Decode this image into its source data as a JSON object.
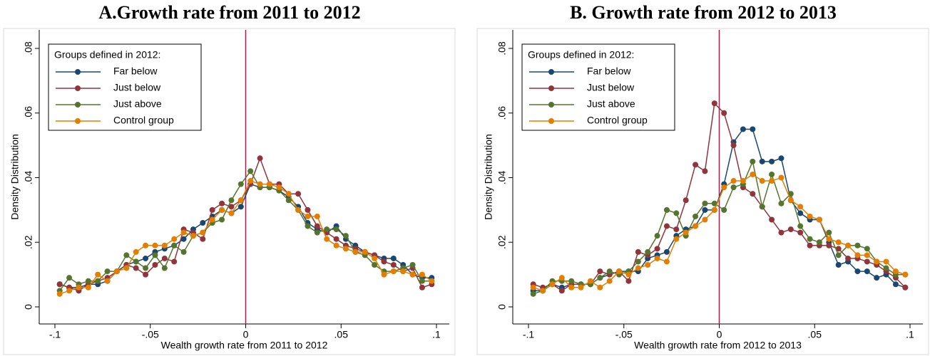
{
  "chart_data": [
    {
      "type": "line",
      "title": "A.Growth rate from 2011 to 2012",
      "xlabel": "Wealth growth rate from 2011 to 2012",
      "ylabel": "Density Distribution",
      "legend_title": "Groups defined in 2012:",
      "legend": "top-left",
      "vline": 0,
      "vline_color": "#a0244a",
      "x": [
        -0.0975,
        -0.0925,
        -0.0875,
        -0.0825,
        -0.0775,
        -0.0725,
        -0.0675,
        -0.0625,
        -0.0575,
        -0.0525,
        -0.0475,
        -0.0425,
        -0.0375,
        -0.0325,
        -0.0275,
        -0.0225,
        -0.0175,
        -0.0125,
        -0.0075,
        -0.0025,
        0.0025,
        0.0075,
        0.0125,
        0.0175,
        0.0225,
        0.0275,
        0.0325,
        0.0375,
        0.0425,
        0.0475,
        0.0525,
        0.0575,
        0.0625,
        0.0675,
        0.0725,
        0.0775,
        0.0825,
        0.0875,
        0.0925,
        0.0975
      ],
      "xlim": [
        -0.1,
        0.1
      ],
      "xticks": [
        {
          "value": -0.1,
          "label": "-.1"
        },
        {
          "value": -0.05,
          "label": "-.05"
        },
        {
          "value": 0,
          "label": "0"
        },
        {
          "value": 0.05,
          "label": ".05"
        },
        {
          "value": 0.1,
          "label": ".1"
        }
      ],
      "ylim": [
        0,
        0.08
      ],
      "yticks": [
        {
          "value": 0,
          "label": "0"
        },
        {
          "value": 0.02,
          "label": ".02"
        },
        {
          "value": 0.04,
          "label": ".04"
        },
        {
          "value": 0.06,
          "label": ".06"
        },
        {
          "value": 0.08,
          "label": ".08"
        }
      ],
      "series": [
        {
          "name": "Far below",
          "color": "#1a476f",
          "values": [
            0.007,
            0.006,
            0.006,
            0.007,
            0.007,
            0.008,
            0.011,
            0.013,
            0.014,
            0.015,
            0.017,
            0.018,
            0.019,
            0.021,
            0.024,
            0.026,
            0.028,
            0.03,
            0.029,
            0.031,
            0.038,
            0.037,
            0.037,
            0.036,
            0.034,
            0.031,
            0.026,
            0.024,
            0.023,
            0.025,
            0.021,
            0.019,
            0.017,
            0.016,
            0.015,
            0.015,
            0.013,
            0.01,
            0.009,
            0.009
          ]
        },
        {
          "name": "Just below",
          "color": "#90353b",
          "values": [
            0.007,
            0.006,
            0.005,
            0.007,
            0.008,
            0.009,
            0.011,
            0.013,
            0.012,
            0.01,
            0.013,
            0.015,
            0.014,
            0.024,
            0.023,
            0.021,
            0.03,
            0.032,
            0.031,
            0.033,
            0.038,
            0.046,
            0.038,
            0.038,
            0.035,
            0.035,
            0.03,
            0.025,
            0.023,
            0.021,
            0.019,
            0.018,
            0.017,
            0.016,
            0.014,
            0.013,
            0.011,
            0.012,
            0.006,
            0.007
          ]
        },
        {
          "name": "Just above",
          "color": "#55752f",
          "values": [
            0.005,
            0.009,
            0.007,
            0.008,
            0.008,
            0.011,
            0.011,
            0.016,
            0.014,
            0.012,
            0.016,
            0.012,
            0.019,
            0.017,
            0.022,
            0.023,
            0.026,
            0.027,
            0.033,
            0.038,
            0.042,
            0.037,
            0.037,
            0.036,
            0.033,
            0.03,
            0.025,
            0.023,
            0.024,
            0.024,
            0.022,
            0.017,
            0.016,
            0.013,
            0.011,
            0.011,
            0.012,
            0.013,
            0.008,
            0.008
          ]
        },
        {
          "name": "Control group",
          "color": "#e37e00",
          "values": [
            0.004,
            0.005,
            0.006,
            0.006,
            0.01,
            0.008,
            0.011,
            0.012,
            0.017,
            0.019,
            0.019,
            0.019,
            0.021,
            0.023,
            0.022,
            0.023,
            0.027,
            0.03,
            0.029,
            0.033,
            0.039,
            0.038,
            0.038,
            0.037,
            0.035,
            0.03,
            0.028,
            0.028,
            0.021,
            0.019,
            0.018,
            0.017,
            0.017,
            0.015,
            0.01,
            0.011,
            0.011,
            0.01,
            0.01,
            0.008
          ]
        }
      ]
    },
    {
      "type": "line",
      "title": "B. Growth rate from 2012 to 2013",
      "xlabel": "Wealth growth rate from 2012 to 2013",
      "ylabel": "Density Distribution",
      "legend_title": "Groups defined in 2012:",
      "legend": "top-left",
      "vline": 0,
      "vline_color": "#a0244a",
      "x": [
        -0.0975,
        -0.0925,
        -0.0875,
        -0.0825,
        -0.0775,
        -0.0725,
        -0.0675,
        -0.0625,
        -0.0575,
        -0.0525,
        -0.0475,
        -0.0425,
        -0.0375,
        -0.0325,
        -0.0275,
        -0.0225,
        -0.0175,
        -0.0125,
        -0.0075,
        -0.0025,
        0.0025,
        0.0075,
        0.0125,
        0.0175,
        0.0225,
        0.0275,
        0.0325,
        0.0375,
        0.0425,
        0.0475,
        0.0525,
        0.0575,
        0.0625,
        0.0675,
        0.0725,
        0.0775,
        0.0825,
        0.0875,
        0.0925,
        0.0975
      ],
      "xlim": [
        -0.1,
        0.1
      ],
      "xticks": [
        {
          "value": -0.1,
          "label": "-.1"
        },
        {
          "value": -0.05,
          "label": "-.05"
        },
        {
          "value": 0,
          "label": "0"
        },
        {
          "value": 0.05,
          "label": ".05"
        },
        {
          "value": 0.1,
          "label": ".1"
        }
      ],
      "ylim": [
        0,
        0.08
      ],
      "yticks": [
        {
          "value": 0,
          "label": "0"
        },
        {
          "value": 0.02,
          "label": ".02"
        },
        {
          "value": 0.04,
          "label": ".04"
        },
        {
          "value": 0.06,
          "label": ".06"
        },
        {
          "value": 0.08,
          "label": ".08"
        }
      ],
      "series": [
        {
          "name": "Far below",
          "color": "#1a476f",
          "values": [
            0.005,
            0.005,
            0.007,
            0.006,
            0.007,
            0.007,
            0.007,
            0.009,
            0.01,
            0.011,
            0.011,
            0.011,
            0.015,
            0.016,
            0.017,
            0.022,
            0.024,
            0.025,
            0.03,
            0.03,
            0.038,
            0.051,
            0.055,
            0.055,
            0.045,
            0.045,
            0.046,
            0.033,
            0.029,
            0.027,
            0.027,
            0.02,
            0.013,
            0.014,
            0.011,
            0.011,
            0.009,
            0.01,
            0.007,
            0.006
          ]
        },
        {
          "name": "Just below",
          "color": "#90353b",
          "values": [
            0.007,
            0.006,
            0.007,
            0.005,
            0.007,
            0.007,
            0.007,
            0.011,
            0.01,
            0.011,
            0.008,
            0.017,
            0.016,
            0.018,
            0.025,
            0.024,
            0.033,
            0.044,
            0.042,
            0.063,
            0.06,
            0.05,
            0.037,
            0.035,
            0.031,
            0.027,
            0.023,
            0.024,
            0.023,
            0.019,
            0.019,
            0.019,
            0.018,
            0.015,
            0.015,
            0.014,
            0.013,
            0.011,
            0.009,
            0.006
          ]
        },
        {
          "name": "Just above",
          "color": "#55752f",
          "values": [
            0.004,
            0.005,
            0.008,
            0.008,
            0.008,
            0.007,
            0.007,
            0.009,
            0.011,
            0.01,
            0.011,
            0.014,
            0.017,
            0.022,
            0.03,
            0.029,
            0.022,
            0.028,
            0.032,
            0.032,
            0.03,
            0.037,
            0.038,
            0.045,
            0.031,
            0.041,
            0.032,
            0.035,
            0.025,
            0.021,
            0.02,
            0.023,
            0.016,
            0.019,
            0.019,
            0.018,
            0.014,
            0.012,
            0.01,
            0.01
          ]
        },
        {
          "name": "Control group",
          "color": "#e37e00",
          "values": [
            0.006,
            0.005,
            0.007,
            0.009,
            0.006,
            0.006,
            0.008,
            0.006,
            0.008,
            0.011,
            0.01,
            0.012,
            0.013,
            0.015,
            0.014,
            0.021,
            0.023,
            0.025,
            0.027,
            0.03,
            0.037,
            0.039,
            0.039,
            0.041,
            0.039,
            0.039,
            0.04,
            0.033,
            0.031,
            0.028,
            0.027,
            0.021,
            0.02,
            0.019,
            0.016,
            0.016,
            0.014,
            0.014,
            0.011,
            0.01
          ]
        }
      ]
    }
  ]
}
